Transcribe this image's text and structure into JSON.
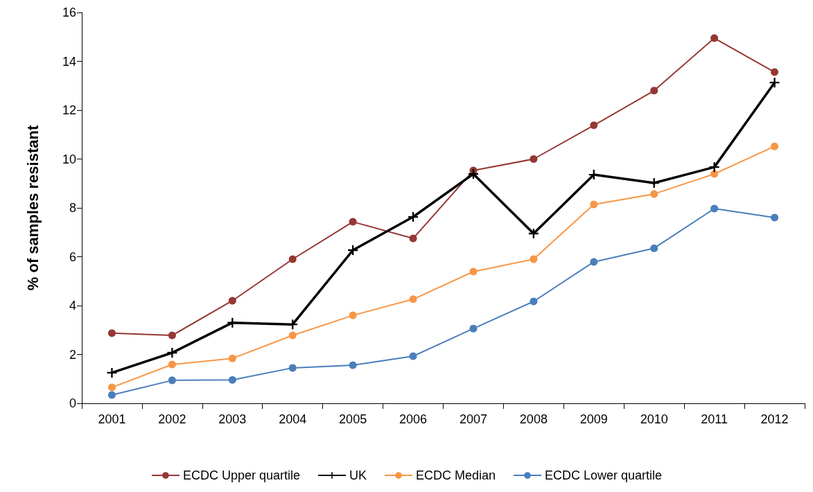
{
  "chart_data": {
    "type": "line",
    "ylabel": "% of samples resistant",
    "categories": [
      "2001",
      "2002",
      "2003",
      "2004",
      "2005",
      "2006",
      "2007",
      "2008",
      "2009",
      "2010",
      "2011",
      "2012"
    ],
    "series": [
      {
        "name": "ECDC Upper quartile",
        "color": "#953735",
        "marker": "circle",
        "values": [
          2.87,
          2.78,
          4.2,
          5.9,
          7.43,
          6.75,
          9.53,
          10.0,
          11.38,
          12.8,
          14.95,
          13.56
        ]
      },
      {
        "name": "UK",
        "color": "#000000",
        "marker": "cross",
        "values": [
          1.25,
          2.07,
          3.3,
          3.23,
          6.27,
          7.63,
          9.39,
          6.95,
          9.36,
          9.02,
          9.67,
          13.13
        ]
      },
      {
        "name": "ECDC Median",
        "color": "#f79646",
        "marker": "circle",
        "values": [
          0.65,
          1.59,
          1.84,
          2.78,
          3.6,
          4.26,
          5.39,
          5.9,
          8.14,
          8.57,
          9.39,
          10.52
        ]
      },
      {
        "name": "ECDC Lower quartile",
        "color": "#4a7ebb",
        "marker": "circle",
        "values": [
          0.34,
          0.94,
          0.96,
          1.45,
          1.56,
          1.93,
          3.06,
          4.17,
          5.79,
          6.35,
          7.97,
          7.6
        ]
      }
    ],
    "ylim": [
      0,
      16
    ],
    "yticks": [
      0,
      2,
      4,
      6,
      8,
      10,
      12,
      14,
      16
    ],
    "grid": false,
    "legend": "bottom",
    "line_style": "solid"
  }
}
